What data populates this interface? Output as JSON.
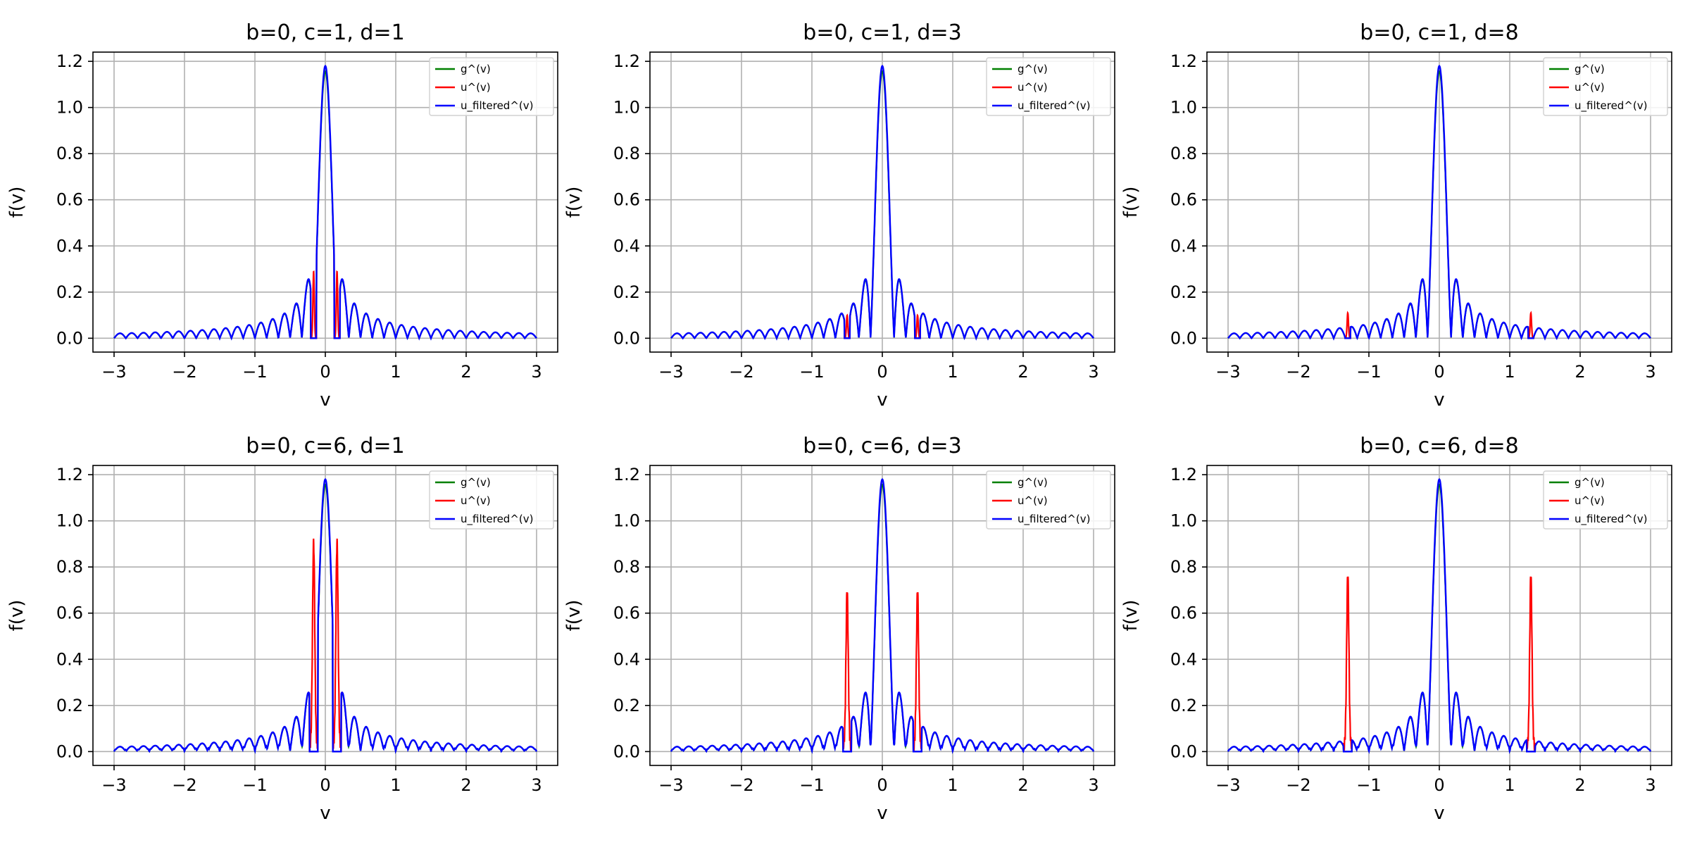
{
  "figure": {
    "legend_location": "upper right",
    "grid": true
  },
  "series_style": [
    {
      "name": "g^(v)",
      "color": "#008000"
    },
    {
      "name": "u^(v)",
      "color": "#ff0000"
    },
    {
      "name": "u_filtered^(v)",
      "color": "#0000ff"
    }
  ],
  "chart_data": [
    {
      "type": "line",
      "title": "b=0, c=1, d=1",
      "xlabel": "v",
      "ylabel": "f(v)",
      "xlim": [
        -3.3,
        3.3
      ],
      "ylim": [
        -0.06,
        1.24
      ],
      "xticks": [
        -3,
        -2,
        -1,
        0,
        1,
        2,
        3
      ],
      "yticks": [
        0.0,
        0.2,
        0.4,
        0.6,
        0.8,
        1.0,
        1.2
      ],
      "xtick_labels": [
        "−3",
        "−2",
        "−1",
        "0",
        "1",
        "2",
        "3"
      ],
      "ytick_labels": [
        "0.0",
        "0.2",
        "0.4",
        "0.6",
        "0.8",
        "1.0",
        "1.2"
      ],
      "legend": [
        "g^(v)",
        "u^(v)",
        "u_filtered^(v)"
      ],
      "series": [
        {
          "name": "g^(v)",
          "x_range": [
            -3,
            3
          ],
          "description_values": {
            "peak": 1.18,
            "first_sidelobe": 0.29
          }
        },
        {
          "name": "u^(v)",
          "x_range": [
            -3,
            3
          ],
          "red_peaks_at": [
            -0.166,
            0.166
          ],
          "red_peak_height": 0.29
        },
        {
          "name": "u_filtered^(v)",
          "x_range": [
            -3,
            3
          ],
          "peak": 1.18,
          "first_sidelobe": 0.29
        }
      ],
      "params": {
        "c": 1,
        "d": 1
      }
    },
    {
      "type": "line",
      "title": "b=0, c=1, d=3",
      "xlabel": "v",
      "ylabel": "f(v)",
      "xlim": [
        -3.3,
        3.3
      ],
      "ylim": [
        -0.06,
        1.24
      ],
      "xticks": [
        -3,
        -2,
        -1,
        0,
        1,
        2,
        3
      ],
      "yticks": [
        0.0,
        0.2,
        0.4,
        0.6,
        0.8,
        1.0,
        1.2
      ],
      "xtick_labels": [
        "−3",
        "−2",
        "−1",
        "0",
        "1",
        "2",
        "3"
      ],
      "ytick_labels": [
        "0.0",
        "0.2",
        "0.4",
        "0.6",
        "0.8",
        "1.0",
        "1.2"
      ],
      "legend": [
        "g^(v)",
        "u^(v)",
        "u_filtered^(v)"
      ],
      "series": [
        {
          "name": "g^(v)",
          "x_range": [
            -3,
            3
          ]
        },
        {
          "name": "u^(v)",
          "red_peaks_at": [
            -0.5,
            0.5
          ],
          "red_peak_height": 0.1
        },
        {
          "name": "u_filtered^(v)",
          "peak": 1.18
        }
      ],
      "params": {
        "c": 1,
        "d": 3
      }
    },
    {
      "type": "line",
      "title": "b=0, c=1, d=8",
      "xlabel": "v",
      "ylabel": "f(v)",
      "xlim": [
        -3.3,
        3.3
      ],
      "ylim": [
        -0.06,
        1.24
      ],
      "xticks": [
        -3,
        -2,
        -1,
        0,
        1,
        2,
        3
      ],
      "yticks": [
        0.0,
        0.2,
        0.4,
        0.6,
        0.8,
        1.0,
        1.2
      ],
      "xtick_labels": [
        "−3",
        "−2",
        "−1",
        "0",
        "1",
        "2",
        "3"
      ],
      "ytick_labels": [
        "0.0",
        "0.2",
        "0.4",
        "0.6",
        "0.8",
        "1.0",
        "1.2"
      ],
      "legend": [
        "g^(v)",
        "u^(v)",
        "u_filtered^(v)"
      ],
      "series": [
        {
          "name": "g^(v)",
          "x_range": [
            -3,
            3
          ]
        },
        {
          "name": "u^(v)",
          "red_peaks_at": [
            -1.3,
            1.3
          ],
          "red_peak_height": 0.11
        },
        {
          "name": "u_filtered^(v)",
          "peak": 1.18
        }
      ],
      "params": {
        "c": 1,
        "d": 8
      }
    },
    {
      "type": "line",
      "title": "b=0, c=6, d=1",
      "xlabel": "v",
      "ylabel": "f(v)",
      "xlim": [
        -3.3,
        3.3
      ],
      "ylim": [
        -0.06,
        1.24
      ],
      "xticks": [
        -3,
        -2,
        -1,
        0,
        1,
        2,
        3
      ],
      "yticks": [
        0.0,
        0.2,
        0.4,
        0.6,
        0.8,
        1.0,
        1.2
      ],
      "xtick_labels": [
        "−3",
        "−2",
        "−1",
        "0",
        "1",
        "2",
        "3"
      ],
      "ytick_labels": [
        "0.0",
        "0.2",
        "0.4",
        "0.6",
        "0.8",
        "1.0",
        "1.2"
      ],
      "legend": [
        "g^(v)",
        "u^(v)",
        "u_filtered^(v)"
      ],
      "series": [
        {
          "name": "g^(v)",
          "x_range": [
            -3,
            3
          ]
        },
        {
          "name": "u^(v)",
          "red_peaks_at": [
            -0.166,
            0.166
          ],
          "red_peak_height": 0.87
        },
        {
          "name": "u_filtered^(v)",
          "peak": 1.18
        }
      ],
      "params": {
        "c": 6,
        "d": 1
      }
    },
    {
      "type": "line",
      "title": "b=0, c=6, d=3",
      "xlabel": "v",
      "ylabel": "f(v)",
      "xlim": [
        -3.3,
        3.3
      ],
      "ylim": [
        -0.06,
        1.24
      ],
      "xticks": [
        -3,
        -2,
        -1,
        0,
        1,
        2,
        3
      ],
      "yticks": [
        0.0,
        0.2,
        0.4,
        0.6,
        0.8,
        1.0,
        1.2
      ],
      "xtick_labels": [
        "−3",
        "−2",
        "−1",
        "0",
        "1",
        "2",
        "3"
      ],
      "ytick_labels": [
        "0.0",
        "0.2",
        "0.4",
        "0.6",
        "0.8",
        "1.0",
        "1.2"
      ],
      "legend": [
        "g^(v)",
        "u^(v)",
        "u_filtered^(v)"
      ],
      "series": [
        {
          "name": "g^(v)",
          "x_range": [
            -3,
            3
          ]
        },
        {
          "name": "u^(v)",
          "red_peaks_at": [
            -0.5,
            0.5
          ],
          "red_peak_height": 0.66
        },
        {
          "name": "u_filtered^(v)",
          "peak": 1.18
        }
      ],
      "params": {
        "c": 6,
        "d": 3
      }
    },
    {
      "type": "line",
      "title": "b=0, c=6, d=8",
      "xlabel": "v",
      "ylabel": "f(v)",
      "xlim": [
        -3.3,
        3.3
      ],
      "ylim": [
        -0.06,
        1.24
      ],
      "xticks": [
        -3,
        -2,
        -1,
        0,
        1,
        2,
        3
      ],
      "yticks": [
        0.0,
        0.2,
        0.4,
        0.6,
        0.8,
        1.0,
        1.2
      ],
      "xtick_labels": [
        "−3",
        "−2",
        "−1",
        "0",
        "1",
        "2",
        "3"
      ],
      "ytick_labels": [
        "0.0",
        "0.2",
        "0.4",
        "0.6",
        "0.8",
        "1.0",
        "1.2"
      ],
      "legend": [
        "g^(v)",
        "u^(v)",
        "u_filtered^(v)"
      ],
      "series": [
        {
          "name": "g^(v)",
          "x_range": [
            -3,
            3
          ]
        },
        {
          "name": "u^(v)",
          "red_peaks_at": [
            -1.3,
            1.3
          ],
          "red_peak_height": 0.73
        },
        {
          "name": "u_filtered^(v)",
          "peak": 1.18
        }
      ],
      "params": {
        "c": 6,
        "d": 8
      }
    }
  ]
}
